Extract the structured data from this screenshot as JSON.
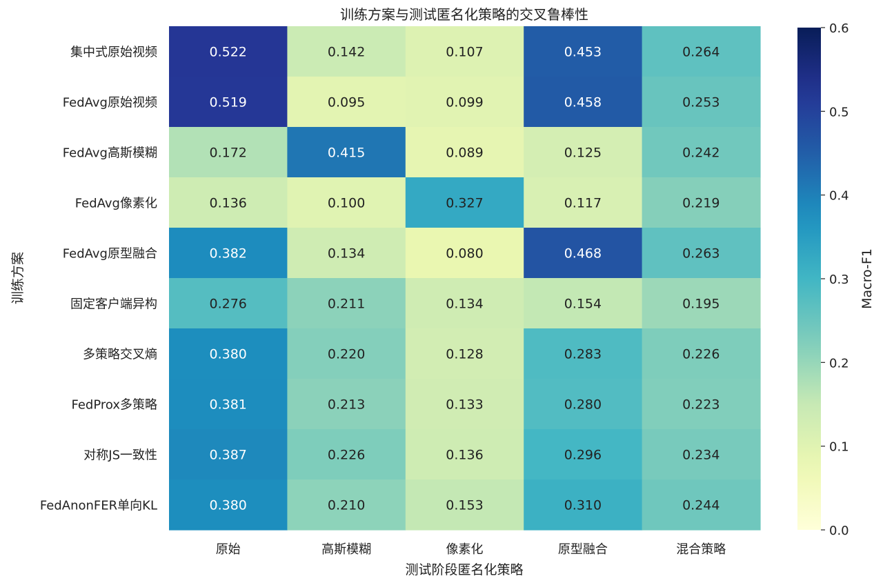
{
  "chart_data": {
    "type": "heatmap",
    "title": "训练方案与测试匿名化策略的交叉鲁棒性",
    "xlabel": "测试阶段匿名化策略",
    "ylabel": "训练方案",
    "colorbar_label": "Macro-F1",
    "colormap": "YlGnBu",
    "vmin": 0.0,
    "vmax": 0.6,
    "colorbar_ticks": [
      "0.0",
      "0.1",
      "0.2",
      "0.3",
      "0.4",
      "0.5",
      "0.6"
    ],
    "columns": [
      "原始",
      "高斯模糊",
      "像素化",
      "原型融合",
      "混合策略"
    ],
    "rows": [
      "集中式原始视频",
      "FedAvg原始视频",
      "FedAvg高斯模糊",
      "FedAvg像素化",
      "FedAvg原型融合",
      "固定客户端异构",
      "多策略交叉熵",
      "FedProx多策略",
      "对称JS一致性",
      "FedAnonFER单向KL"
    ],
    "values": [
      [
        0.522,
        0.142,
        0.107,
        0.453,
        0.264
      ],
      [
        0.519,
        0.095,
        0.099,
        0.458,
        0.253
      ],
      [
        0.172,
        0.415,
        0.089,
        0.125,
        0.242
      ],
      [
        0.136,
        0.1,
        0.327,
        0.117,
        0.219
      ],
      [
        0.382,
        0.134,
        0.08,
        0.468,
        0.263
      ],
      [
        0.276,
        0.211,
        0.134,
        0.154,
        0.195
      ],
      [
        0.38,
        0.22,
        0.128,
        0.283,
        0.226
      ],
      [
        0.381,
        0.213,
        0.133,
        0.28,
        0.223
      ],
      [
        0.387,
        0.226,
        0.136,
        0.296,
        0.234
      ],
      [
        0.38,
        0.21,
        0.153,
        0.31,
        0.244
      ]
    ],
    "value_format": "3-decimal"
  }
}
